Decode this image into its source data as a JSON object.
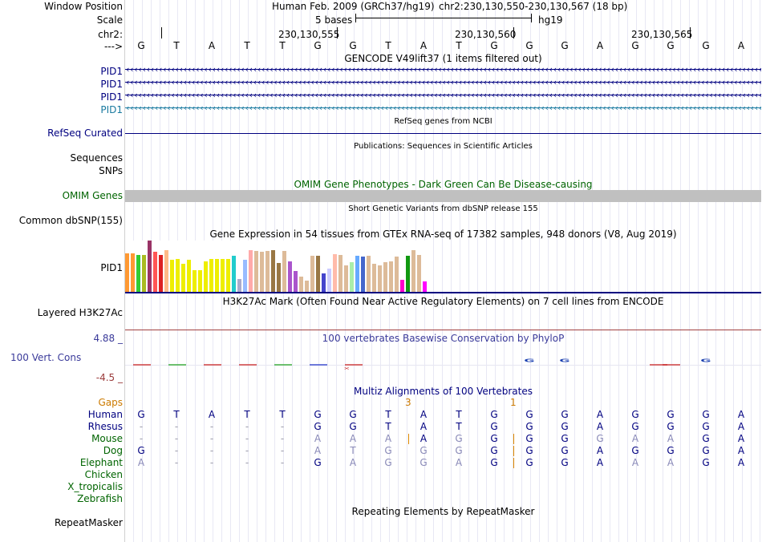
{
  "header": {
    "window_position_label": "Window Position",
    "assembly": "Human Feb. 2009 (GRCh37/hg19)",
    "position": "chr2:230,130,550-230,130,567 (18 bp)",
    "scale_label": "Scale",
    "scale_bases": "5 bases",
    "scale_db": "hg19",
    "chr_label": "chr2:",
    "ticks": [
      "230,130,555",
      "230,130,560",
      "230,130,565"
    ],
    "strand_label": "--->"
  },
  "reference_bases": [
    "G",
    "T",
    "A",
    "T",
    "T",
    "G",
    "G",
    "T",
    "A",
    "T",
    "G",
    "G",
    "G",
    "A",
    "G",
    "G",
    "G",
    "A"
  ],
  "gencode": {
    "title": "GENCODE V49lift37 (1 items filtered out)",
    "labels": [
      "PID1",
      "PID1",
      "PID1",
      "PID1"
    ],
    "label_colors": [
      "#000080",
      "#000080",
      "#000080",
      "#1a7aa0"
    ]
  },
  "refseq": {
    "label": "RefSeq Curated",
    "title": "RefSeq genes from NCBI"
  },
  "publications": {
    "title": "Publications: Sequences in Scientific Articles",
    "labels": [
      "Sequences",
      "SNPs"
    ]
  },
  "omim": {
    "title": "OMIM Gene Phenotypes - Dark Green Can Be Disease-causing",
    "label": "OMIM Genes"
  },
  "dbsnp": {
    "label": "Common dbSNP(155)",
    "title": "Short Genetic Variants from dbSNP release 155"
  },
  "gtex": {
    "title": "Gene Expression in 54 tissues from GTEx RNA-seq of 17382 samples, 948 donors (V8, Aug 2019)",
    "label": "PID1",
    "bars": [
      {
        "v": 0.75,
        "c": "#ff9933"
      },
      {
        "v": 0.75,
        "c": "#ff9933"
      },
      {
        "v": 0.72,
        "c": "#33cc33"
      },
      {
        "v": 0.72,
        "c": "#aabb22"
      },
      {
        "v": 1.0,
        "c": "#993366"
      },
      {
        "v": 0.78,
        "c": "#ff5555"
      },
      {
        "v": 0.72,
        "c": "#dd2222"
      },
      {
        "v": 0.82,
        "c": "#ffbb88"
      },
      {
        "v": 0.62,
        "c": "#eeee00"
      },
      {
        "v": 0.64,
        "c": "#eeee00"
      },
      {
        "v": 0.55,
        "c": "#eeee00"
      },
      {
        "v": 0.62,
        "c": "#eeee00"
      },
      {
        "v": 0.42,
        "c": "#eeee00"
      },
      {
        "v": 0.42,
        "c": "#eeee00"
      },
      {
        "v": 0.6,
        "c": "#eeee00"
      },
      {
        "v": 0.64,
        "c": "#eeee00"
      },
      {
        "v": 0.64,
        "c": "#eeee00"
      },
      {
        "v": 0.64,
        "c": "#eeee00"
      },
      {
        "v": 0.64,
        "c": "#eeee00"
      },
      {
        "v": 0.7,
        "c": "#22cccc"
      },
      {
        "v": 0.25,
        "c": "#aaaacc"
      },
      {
        "v": 0.62,
        "c": "#99bbff"
      },
      {
        "v": 0.82,
        "c": "#ffaaaa"
      },
      {
        "v": 0.8,
        "c": "#ddbb99"
      },
      {
        "v": 0.78,
        "c": "#ddbb99"
      },
      {
        "v": 0.8,
        "c": "#ddbb99"
      },
      {
        "v": 0.82,
        "c": "#997744"
      },
      {
        "v": 0.56,
        "c": "#997744"
      },
      {
        "v": 0.8,
        "c": "#ddbb99"
      },
      {
        "v": 0.6,
        "c": "#aa55cc"
      },
      {
        "v": 0.4,
        "c": "#aa55cc"
      },
      {
        "v": 0.3,
        "c": "#ddbb99"
      },
      {
        "v": 0.22,
        "c": "#ddbb99"
      },
      {
        "v": 0.7,
        "c": "#ddbb99"
      },
      {
        "v": 0.7,
        "c": "#997744"
      },
      {
        "v": 0.36,
        "c": "#4444cc"
      },
      {
        "v": 0.46,
        "c": "#ccccff"
      },
      {
        "v": 0.74,
        "c": "#ffbbaa"
      },
      {
        "v": 0.72,
        "c": "#ddbb99"
      },
      {
        "v": 0.52,
        "c": "#ddbb99"
      },
      {
        "v": 0.58,
        "c": "#aaeeaa"
      },
      {
        "v": 0.7,
        "c": "#66aaff"
      },
      {
        "v": 0.68,
        "c": "#4466cc"
      },
      {
        "v": 0.7,
        "c": "#ddbb99"
      },
      {
        "v": 0.55,
        "c": "#ddbb99"
      },
      {
        "v": 0.52,
        "c": "#ddbb99"
      },
      {
        "v": 0.58,
        "c": "#ddbb99"
      },
      {
        "v": 0.6,
        "c": "#ddbb99"
      },
      {
        "v": 0.68,
        "c": "#ddbb99"
      },
      {
        "v": 0.24,
        "c": "#ff00cc"
      },
      {
        "v": 0.7,
        "c": "#119911"
      },
      {
        "v": 0.82,
        "c": "#ddbb99"
      },
      {
        "v": 0.72,
        "c": "#ddbb99"
      },
      {
        "v": 0.2,
        "c": "#ff00ff"
      }
    ]
  },
  "h3k27ac": {
    "title": "H3K27Ac Mark (Often Found Near Active Regulatory Elements) on 7 cell lines from ENCODE",
    "label": "Layered H3K27Ac"
  },
  "phylop": {
    "title": "100 vertebrates Basewise Conservation by PhyloP",
    "label": "100 Vert. Cons",
    "max": "4.88 _",
    "min": "-4.5 _"
  },
  "multiz": {
    "title": "Multiz Alignments of 100 Vertebrates",
    "gaps_label": "Gaps",
    "gap_marks": [
      "3",
      "1"
    ],
    "species": [
      {
        "name": "Human",
        "color": "#000080",
        "bases": [
          "G",
          "T",
          "A",
          "T",
          "T",
          "G",
          "G",
          "T",
          "A",
          "T",
          "G",
          "G",
          "G",
          "A",
          "G",
          "G",
          "G",
          "A"
        ]
      },
      {
        "name": "Rhesus",
        "color": "#000080",
        "bases": [
          "-",
          "-",
          "-",
          "-",
          "-",
          "G",
          "G",
          "T",
          "A",
          "T",
          "G",
          "G",
          "G",
          "A",
          "G",
          "G",
          "G",
          "A"
        ]
      },
      {
        "name": "Mouse",
        "color": "#006400",
        "bases": [
          "-",
          "-",
          "-",
          "-",
          "-",
          "A",
          "A",
          "A",
          "A",
          "G",
          "G",
          "G",
          "G",
          "G",
          "A",
          "A",
          "G",
          "A"
        ]
      },
      {
        "name": "Dog",
        "color": "#006400",
        "bases": [
          "G",
          "-",
          "-",
          "-",
          "-",
          "A",
          "T",
          "G",
          "G",
          "G",
          "G",
          "G",
          "G",
          "A",
          "G",
          "G",
          "G",
          "A"
        ]
      },
      {
        "name": "Elephant",
        "color": "#006400",
        "bases": [
          "A",
          "-",
          "-",
          "-",
          "-",
          "G",
          "A",
          "G",
          "G",
          "A",
          "G",
          "G",
          "G",
          "A",
          "A",
          "A",
          "G",
          "A"
        ]
      },
      {
        "name": "Chicken",
        "color": "#006400",
        "bases": []
      },
      {
        "name": "X_tropicalis",
        "color": "#006400",
        "bases": []
      },
      {
        "name": "Zebrafish",
        "color": "#006400",
        "bases": []
      }
    ]
  },
  "repeatmasker": {
    "title": "Repeating Elements by RepeatMasker",
    "label": "RepeatMasker"
  }
}
